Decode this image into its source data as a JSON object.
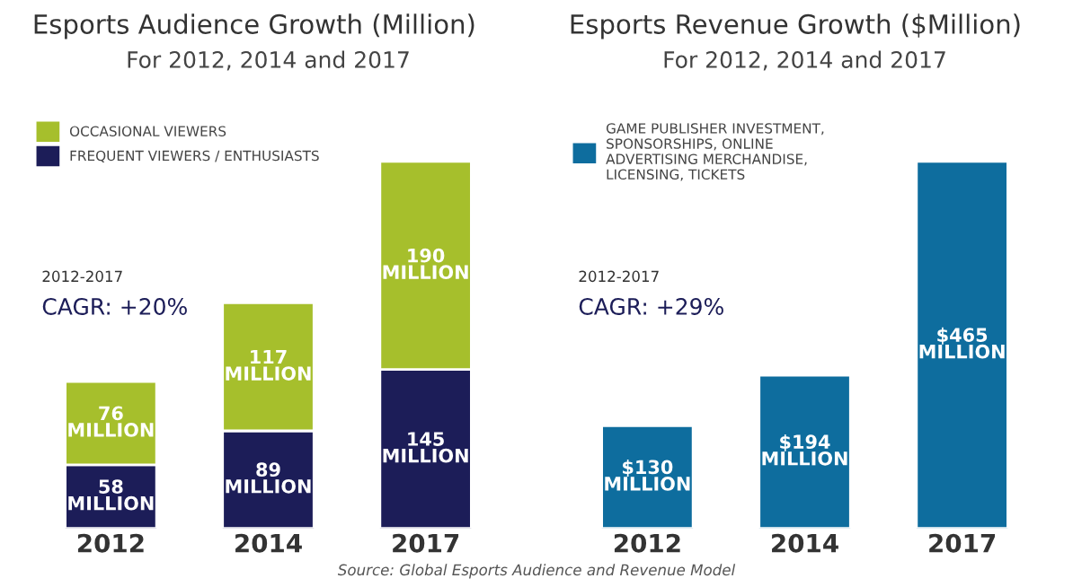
{
  "chart_data": [
    {
      "type": "bar",
      "title": "Esports Audience Growth (Million)",
      "subtitle": "For 2012, 2014 and 2017",
      "stacked": true,
      "legend": "top left",
      "categories": [
        "2012",
        "2014",
        "2017"
      ],
      "series": [
        {
          "name": "FREQUENT VIEWERS / ENTHUSIASTS",
          "color": "#1c1d58",
          "values": [
            58,
            89,
            145
          ],
          "value_labels": [
            "58\nMILLION",
            "89\nMILLION",
            "145\nMILLION"
          ]
        },
        {
          "name": "OCCASIONAL VIEWERS",
          "color": "#a6bf2c",
          "values": [
            76,
            117,
            190
          ],
          "value_labels": [
            "76\nMILLION",
            "117\nMILLION",
            "190\nMILLION"
          ]
        }
      ],
      "annotations": [
        "2012-2017",
        "CAGR: +20%"
      ]
    },
    {
      "type": "bar",
      "title": "Esports Revenue Growth ($Million)",
      "subtitle": "For 2012, 2014 and 2017",
      "legend": "top left",
      "categories": [
        "2012",
        "2014",
        "2017"
      ],
      "series": [
        {
          "name": "GAME PUBLISHER INVESTMENT,\nSPONSORSHIPS, ONLINE\nADVERTISING MERCHANDISE,\nLICENSING, TICKETS",
          "color": "#0e6d9e",
          "values": [
            130,
            194,
            465
          ],
          "value_labels": [
            "$130\nMILLION",
            "$194\nMILLION",
            "$465\nMILLION"
          ]
        }
      ],
      "annotations": [
        "2012-2017",
        "CAGR: +29%",
        "Source: Global Esports Audience and Revenue Model"
      ]
    }
  ]
}
